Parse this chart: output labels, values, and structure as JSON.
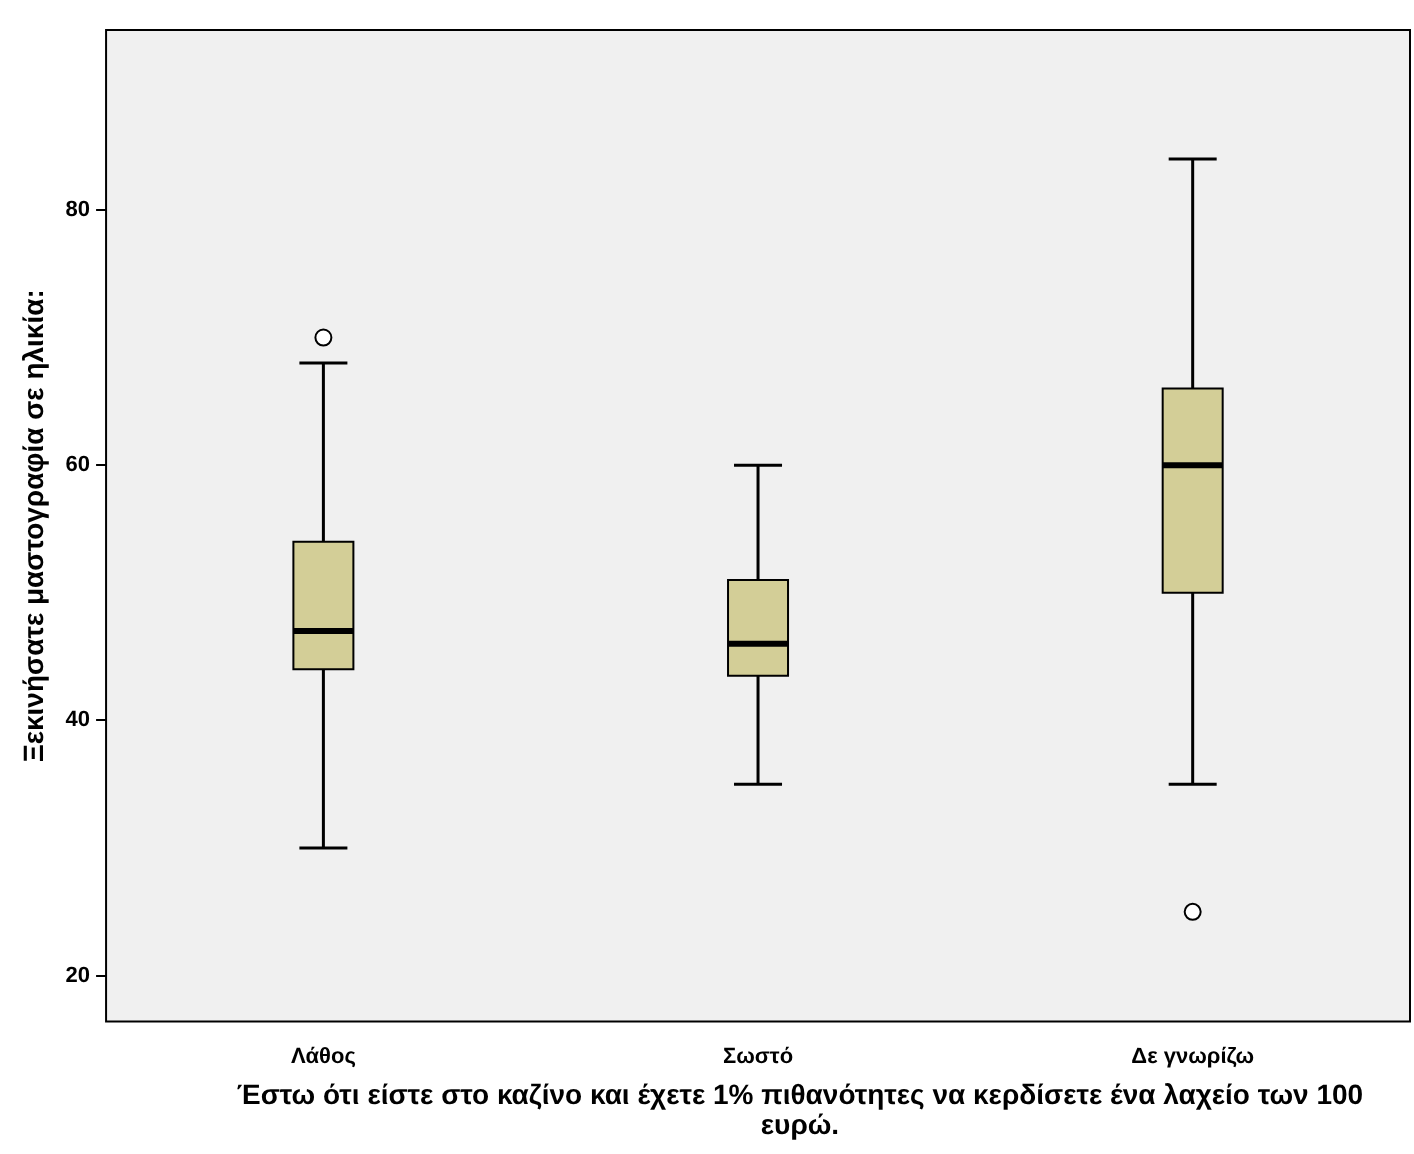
{
  "chart_data": {
    "type": "box",
    "xlabel": "Έστω ότι είστε στο καζίνο και έχετε 1% πιθανότητες να κερδίσετε ένα λαχείο των 100 ευρώ.",
    "ylabel": "Ξεκινήσατε μαστογραφία σε ηλικία:",
    "categories": [
      "Λάθος",
      "Σωστό",
      "Δε γνωρίζω"
    ],
    "boxes": [
      {
        "low": 30,
        "q1": 44,
        "median": 47,
        "q3": 54,
        "high": 68,
        "outliers": [
          70
        ]
      },
      {
        "low": 35,
        "q1": 43.5,
        "median": 46,
        "q3": 51,
        "high": 60
      },
      {
        "low": 35,
        "q1": 50,
        "median": 60,
        "q3": 66,
        "high": 84,
        "outliers": [
          25
        ]
      }
    ],
    "color": "#d3ce97",
    "ylim": [
      16.4,
      94.1
    ],
    "yticks": [
      20,
      40,
      60,
      80
    ],
    "grid": false,
    "legend": false
  }
}
